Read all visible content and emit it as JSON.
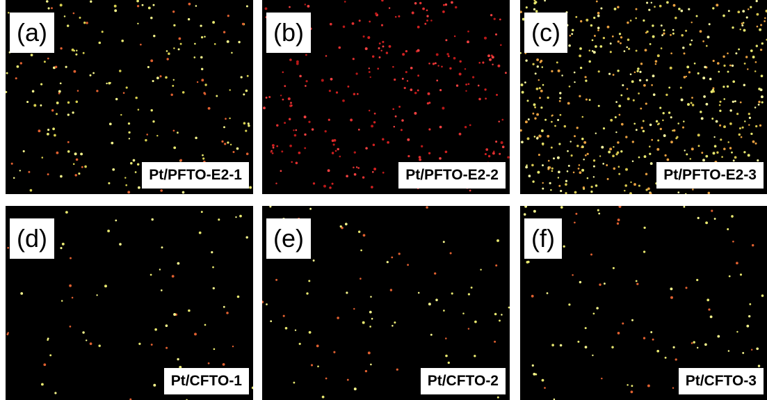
{
  "panels": [
    {
      "letter": "(a)",
      "name": "Pt/PFTO-E2-1"
    },
    {
      "letter": "(b)",
      "name": "Pt/PFTO-E2-2"
    },
    {
      "letter": "(c)",
      "name": "Pt/PFTO-E2-3"
    },
    {
      "letter": "(d)",
      "name": "Pt/CFTO-1"
    },
    {
      "letter": "(e)",
      "name": "Pt/CFTO-2"
    },
    {
      "letter": "(f)",
      "name": "Pt/CFTO-3"
    }
  ]
}
